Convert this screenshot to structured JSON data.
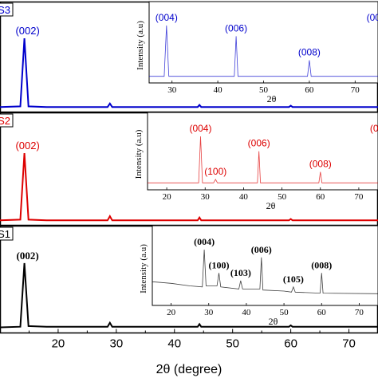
{
  "xlabel": "2θ (degree)",
  "x_tick_labels": [
    "20",
    "30",
    "40",
    "50",
    "60",
    "70"
  ],
  "chart_data": [
    {
      "type": "line",
      "panel": "top",
      "sample_label": "S3",
      "color": "#0000cc",
      "xlim": [
        10,
        75
      ],
      "series": [
        {
          "x": [
            10,
            13.5,
            14.2,
            14.9,
            18,
            28.5,
            28.9,
            29.3,
            44.0,
            44.3,
            44.6,
            59.7,
            60.0,
            60.3,
            75
          ],
          "y": [
            0.02,
            0.03,
            1.0,
            0.03,
            0.02,
            0.02,
            0.07,
            0.02,
            0.02,
            0.05,
            0.02,
            0.02,
            0.04,
            0.02,
            0.02
          ]
        }
      ],
      "peak_labels": [
        {
          "label": "(002)",
          "x": 14.2
        }
      ],
      "inset": {
        "ylabel": "Intensity (a.u)",
        "xlabel": "2θ",
        "x_tick_labels": [
          "30",
          "40",
          "50",
          "60",
          "70"
        ],
        "xlim": [
          25,
          75
        ],
        "series": [
          {
            "x": [
              25,
              28.3,
              28.8,
              29.3,
              43.6,
              44.0,
              44.4,
              59.6,
              60.0,
              60.4,
              75
            ],
            "y": [
              0.05,
              0.05,
              1.0,
              0.05,
              0.05,
              0.8,
              0.05,
              0.05,
              0.35,
              0.05,
              0.05
            ]
          }
        ],
        "peak_labels": [
          {
            "label": "(004)",
            "x": 28.8
          },
          {
            "label": "(006)",
            "x": 44.0
          },
          {
            "label": "(008)",
            "x": 60.0
          },
          {
            "label": "(00",
            "x": 74.0
          }
        ]
      }
    },
    {
      "type": "line",
      "panel": "middle",
      "sample_label": "S2",
      "color": "#dd0000",
      "xlim": [
        10,
        75
      ],
      "series": [
        {
          "x": [
            10,
            13.5,
            14.2,
            14.9,
            18,
            28.5,
            28.9,
            29.3,
            44.0,
            44.3,
            44.6,
            59.7,
            60.0,
            60.3,
            75
          ],
          "y": [
            0.02,
            0.03,
            1.0,
            0.03,
            0.02,
            0.02,
            0.08,
            0.02,
            0.02,
            0.06,
            0.02,
            0.02,
            0.04,
            0.02,
            0.02
          ]
        }
      ],
      "peak_labels": [
        {
          "label": "(002)",
          "x": 14.2
        }
      ],
      "inset": {
        "ylabel": "Intensity (a.u)",
        "xlabel": "2θ",
        "x_tick_labels": [
          "20",
          "30",
          "40",
          "50",
          "60",
          "70"
        ],
        "xlim": [
          15,
          75
        ],
        "series": [
          {
            "x": [
              15,
              28.3,
              28.8,
              29.3,
              32.2,
              32.7,
              33.2,
              43.6,
              44.0,
              44.4,
              59.6,
              60.0,
              60.4,
              75
            ],
            "y": [
              0.06,
              0.06,
              1.0,
              0.06,
              0.06,
              0.13,
              0.06,
              0.06,
              0.7,
              0.06,
              0.06,
              0.28,
              0.06,
              0.06
            ]
          }
        ],
        "peak_labels": [
          {
            "label": "(004)",
            "x": 28.8
          },
          {
            "label": "(100)",
            "x": 32.7
          },
          {
            "label": "(006)",
            "x": 44.0
          },
          {
            "label": "(008)",
            "x": 60.0
          },
          {
            "label": "(0",
            "x": 74.0
          }
        ]
      }
    },
    {
      "type": "line",
      "panel": "bottom",
      "sample_label": "S1",
      "color": "#000000",
      "xlim": [
        10,
        75
      ],
      "series": [
        {
          "x": [
            10,
            13.5,
            14.2,
            14.9,
            18,
            28.5,
            28.9,
            29.3,
            44.0,
            44.3,
            44.6,
            59.7,
            60.0,
            60.3,
            75
          ],
          "y": [
            0.03,
            0.04,
            1.0,
            0.05,
            0.04,
            0.04,
            0.1,
            0.04,
            0.04,
            0.08,
            0.04,
            0.04,
            0.06,
            0.04,
            0.04
          ]
        }
      ],
      "peak_labels": [
        {
          "label": "(002)",
          "x": 14.2
        }
      ],
      "inset": {
        "ylabel": "Intensity (a.u)",
        "xlabel": "2θ",
        "x_tick_labels": [
          "20",
          "30",
          "40",
          "50",
          "60",
          "70"
        ],
        "xlim": [
          15,
          75
        ],
        "series": [
          {
            "x": [
              15,
              20,
              25,
              28.3,
              28.8,
              29.3,
              32.2,
              32.7,
              33.2,
              38.0,
              38.5,
              39.0,
              43.6,
              44.0,
              44.4,
              50,
              52.0,
              52.5,
              53.0,
              59.6,
              60.0,
              60.4,
              75
            ],
            "y": [
              0.38,
              0.35,
              0.3,
              0.28,
              1.0,
              0.3,
              0.3,
              0.55,
              0.28,
              0.24,
              0.4,
              0.24,
              0.24,
              0.85,
              0.22,
              0.2,
              0.18,
              0.28,
              0.18,
              0.16,
              0.55,
              0.16,
              0.15
            ]
          }
        ],
        "peak_labels": [
          {
            "label": "(004)",
            "x": 28.8
          },
          {
            "label": "(100)",
            "x": 32.7
          },
          {
            "label": "(103)",
            "x": 38.5
          },
          {
            "label": "(006)",
            "x": 44.0
          },
          {
            "label": "(105)",
            "x": 52.5
          },
          {
            "label": "(008)",
            "x": 60.0
          }
        ]
      }
    }
  ]
}
